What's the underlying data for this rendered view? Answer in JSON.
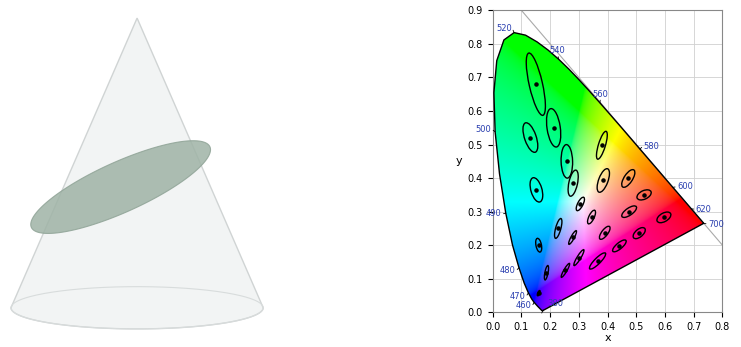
{
  "chart_data": {
    "type": "chromaticity",
    "xlabel": "x",
    "ylabel": "y",
    "xlim": [
      0,
      0.8
    ],
    "ylim": [
      0,
      0.9
    ],
    "xticks": [
      0.0,
      0.1,
      0.2,
      0.3,
      0.4,
      0.5,
      0.6,
      0.7,
      0.8
    ],
    "yticks": [
      0.0,
      0.1,
      0.2,
      0.3,
      0.4,
      0.5,
      0.6,
      0.7,
      0.8,
      0.9
    ],
    "grid": true,
    "spectral_locus": {
      "x": [
        0.1741,
        0.1733,
        0.1714,
        0.1689,
        0.1644,
        0.1566,
        0.144,
        0.1355,
        0.1241,
        0.1096,
        0.0913,
        0.0687,
        0.0454,
        0.0235,
        0.0082,
        0.0039,
        0.0139,
        0.0389,
        0.0743,
        0.1142,
        0.1547,
        0.1929,
        0.2296,
        0.2658,
        0.3016,
        0.3373,
        0.3731,
        0.4087,
        0.4441,
        0.4788,
        0.5125,
        0.5448,
        0.5752,
        0.6029,
        0.627,
        0.6658,
        0.6915,
        0.7079,
        0.719,
        0.726,
        0.73,
        0.7334,
        0.7347
      ],
      "y": [
        0.005,
        0.0048,
        0.0051,
        0.0069,
        0.0109,
        0.0177,
        0.0297,
        0.0399,
        0.0578,
        0.0868,
        0.1327,
        0.2007,
        0.295,
        0.4127,
        0.5384,
        0.6548,
        0.7502,
        0.812,
        0.8338,
        0.8262,
        0.8059,
        0.7816,
        0.7543,
        0.7243,
        0.6923,
        0.6589,
        0.6245,
        0.5896,
        0.5547,
        0.5202,
        0.4866,
        0.4544,
        0.4242,
        0.3965,
        0.3725,
        0.334,
        0.3083,
        0.292,
        0.2809,
        0.274,
        0.27,
        0.2666,
        0.2653
      ]
    },
    "wavelength_labels": [
      {
        "label": "380",
        "x": 0.1741,
        "y": 0.005
      },
      {
        "label": "460",
        "x": 0.144,
        "y": 0.0297
      },
      {
        "label": "470",
        "x": 0.1241,
        "y": 0.0578
      },
      {
        "label": "480",
        "x": 0.0913,
        "y": 0.1327
      },
      {
        "label": "490",
        "x": 0.0454,
        "y": 0.295
      },
      {
        "label": "500",
        "x": 0.0082,
        "y": 0.5384
      },
      {
        "label": "520",
        "x": 0.0743,
        "y": 0.8338
      },
      {
        "label": "540",
        "x": 0.2296,
        "y": 0.7543
      },
      {
        "label": "560",
        "x": 0.3731,
        "y": 0.6245
      },
      {
        "label": "580",
        "x": 0.5125,
        "y": 0.4866
      },
      {
        "label": "600",
        "x": 0.627,
        "y": 0.3725
      },
      {
        "label": "620",
        "x": 0.6915,
        "y": 0.3083
      },
      {
        "label": "700",
        "x": 0.7347,
        "y": 0.2653
      }
    ],
    "ellipses": {
      "x": [
        0.16,
        0.187,
        0.253,
        0.15,
        0.131,
        0.212,
        0.258,
        0.152,
        0.28,
        0.38,
        0.16,
        0.228,
        0.305,
        0.385,
        0.472,
        0.527,
        0.475,
        0.51,
        0.596,
        0.344,
        0.39,
        0.441,
        0.278,
        0.3,
        0.365
      ],
      "y": [
        0.057,
        0.118,
        0.125,
        0.68,
        0.521,
        0.55,
        0.45,
        0.365,
        0.385,
        0.498,
        0.2,
        0.25,
        0.323,
        0.393,
        0.399,
        0.35,
        0.3,
        0.236,
        0.283,
        0.284,
        0.237,
        0.198,
        0.223,
        0.163,
        0.153
      ],
      "a": [
        0.0085,
        0.022,
        0.025,
        0.096,
        0.047,
        0.058,
        0.05,
        0.038,
        0.04,
        0.044,
        0.021,
        0.031,
        0.023,
        0.038,
        0.032,
        0.026,
        0.029,
        0.024,
        0.026,
        0.023,
        0.025,
        0.028,
        0.024,
        0.029,
        0.036
      ],
      "b": [
        0.0035,
        0.0055,
        0.005,
        0.023,
        0.02,
        0.023,
        0.02,
        0.019,
        0.015,
        0.012,
        0.0095,
        0.009,
        0.009,
        0.016,
        0.014,
        0.013,
        0.011,
        0.012,
        0.013,
        0.009,
        0.01,
        0.0095,
        0.0055,
        0.006,
        0.0095
      ],
      "angle": [
        62.5,
        77,
        55.5,
        105,
        112.5,
        100,
        92,
        110,
        75.5,
        70,
        104,
        72,
        58,
        65.5,
        51,
        20,
        29.5,
        33,
        24,
        60,
        47,
        34.5,
        57.5,
        54,
        40
      ]
    }
  }
}
